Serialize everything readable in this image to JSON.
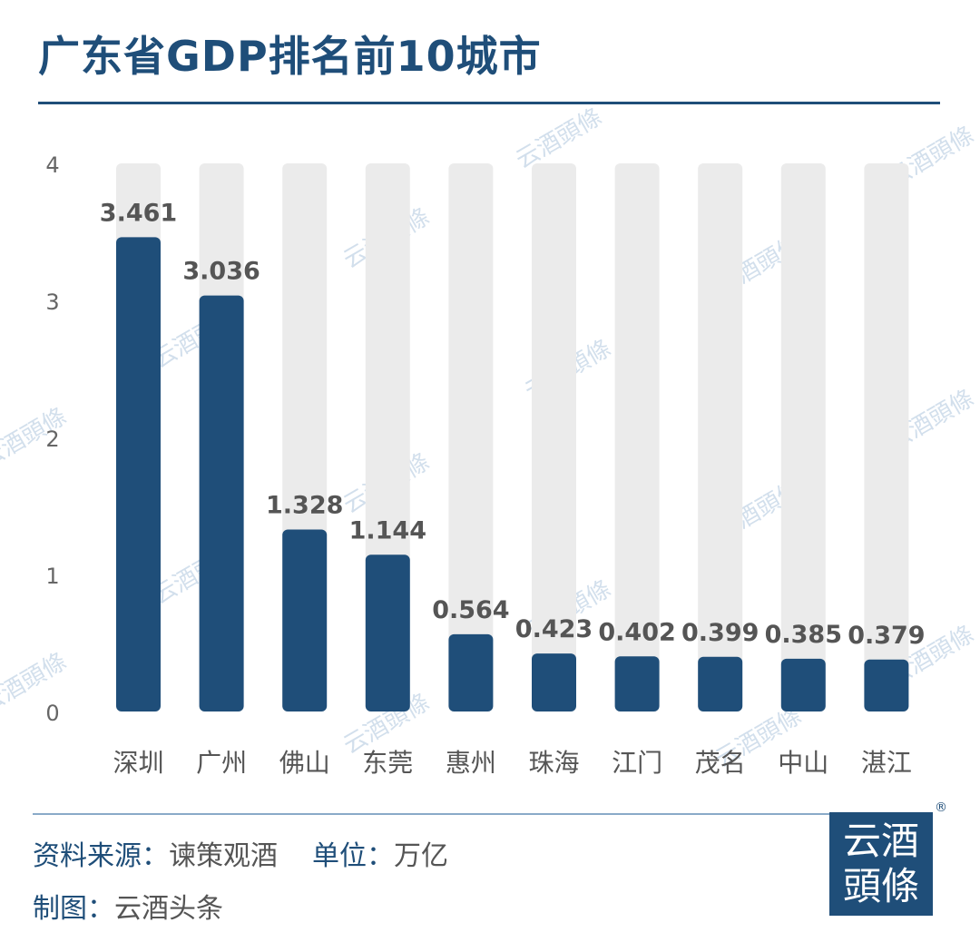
{
  "title": "广东省GDP排名前10城市",
  "footer": {
    "source_label": "资料来源：",
    "source_value": "谏策观酒",
    "unit_label": "单位：",
    "unit_value": "万亿",
    "maker_label": "制图：",
    "maker_value": "云酒头条"
  },
  "logo": {
    "line1": "云酒",
    "line2": "頭條",
    "registered": "®"
  },
  "watermark": "云酒頭條",
  "colors": {
    "bar": "#1f4e79",
    "track": "#ebebeb",
    "title": "#1f4e79",
    "label": "#555555"
  },
  "chart_data": {
    "type": "bar",
    "title": "广东省GDP排名前10城市",
    "xlabel": "",
    "ylabel": "",
    "categories": [
      "深圳",
      "广州",
      "佛山",
      "东莞",
      "惠州",
      "珠海",
      "江门",
      "茂名",
      "中山",
      "湛江"
    ],
    "values": [
      3.461,
      3.036,
      1.328,
      1.144,
      0.564,
      0.423,
      0.402,
      0.399,
      0.385,
      0.379
    ],
    "value_labels": [
      "3.461",
      "3.036",
      "1.328",
      "1.144",
      "0.564",
      "0.423",
      "0.402",
      "0.399",
      "0.385",
      "0.379"
    ],
    "yticks": [
      "0",
      "1",
      "2",
      "3",
      "4"
    ],
    "ylim": [
      0,
      4
    ],
    "grid": false,
    "legend": "none"
  }
}
